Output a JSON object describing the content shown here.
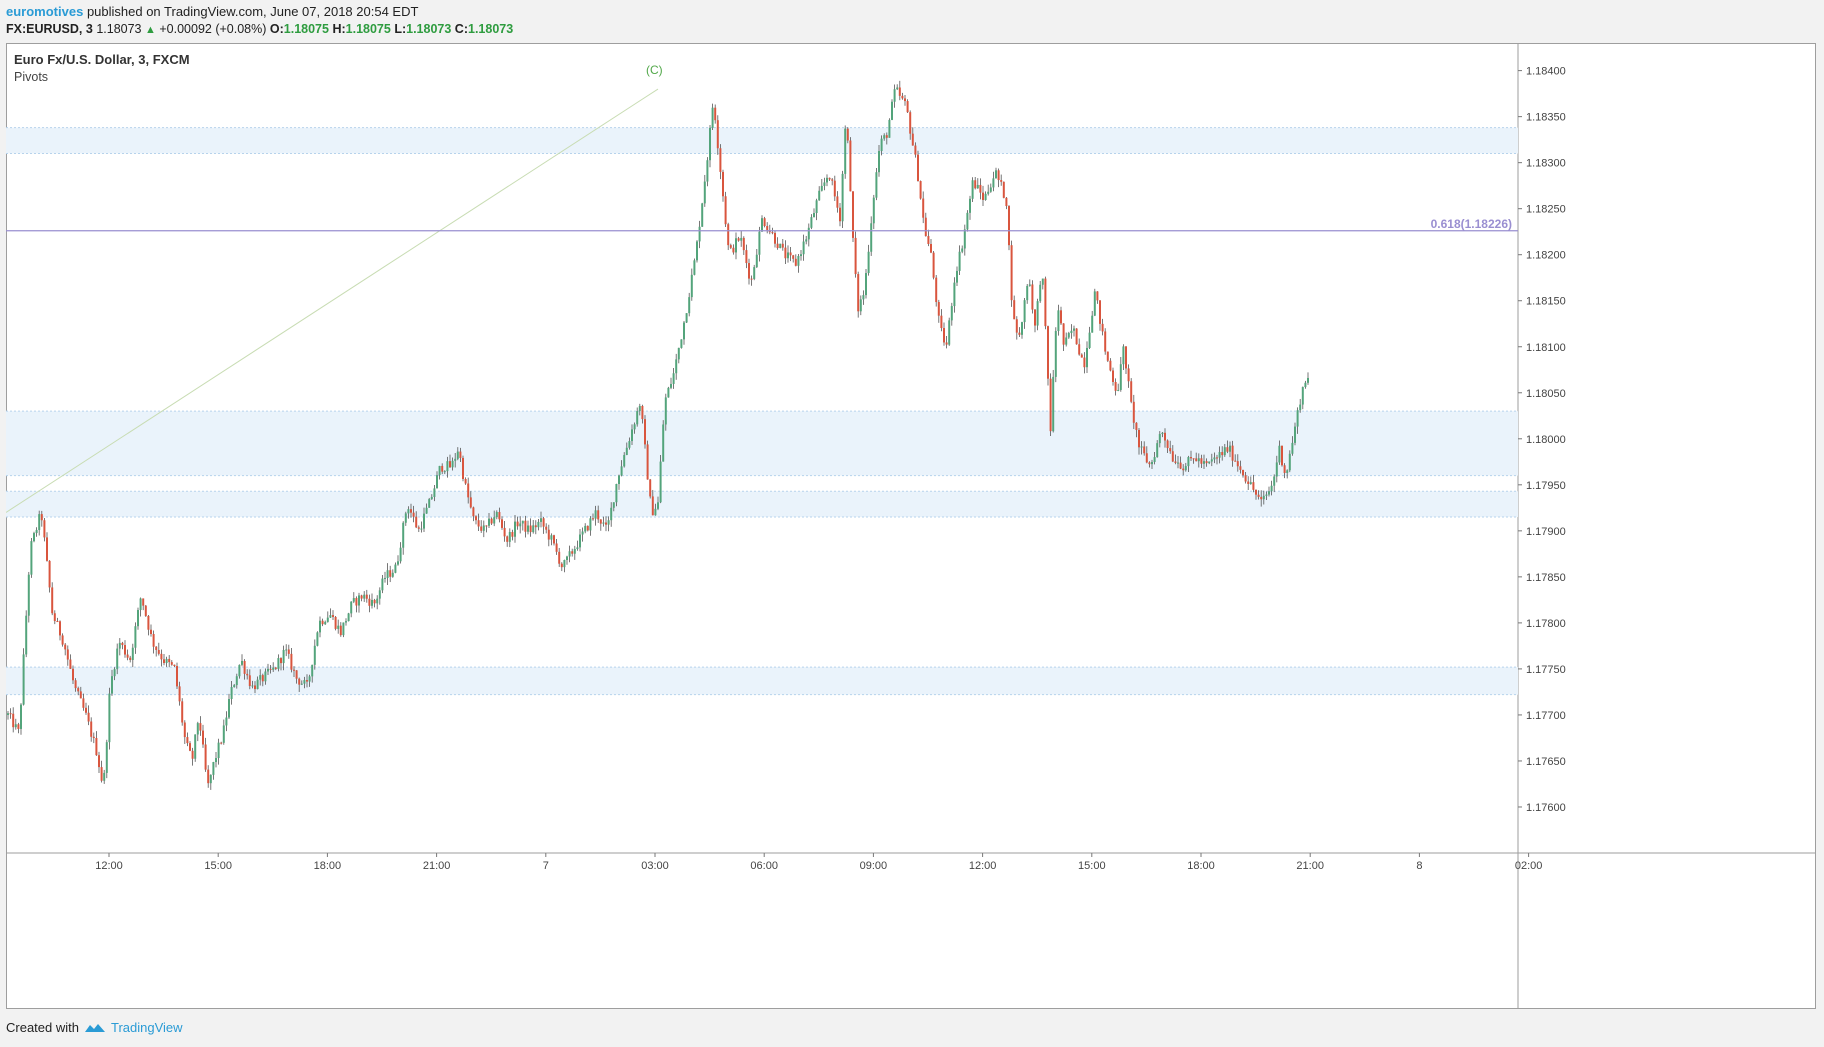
{
  "header": {
    "publisher": "euromotives",
    "published_text": "published on TradingView.com, June 07, 2018 20:54 EDT",
    "symbol": "FX:EURUSD, 3",
    "last_price": "1.18073",
    "change": "+0.00092 (+0.08%)",
    "open_label": "O:",
    "open_value": "1.18075",
    "high_label": "H:",
    "high_value": "1.18075",
    "low_label": "L:",
    "low_value": "1.18073",
    "close_label": "C:",
    "close_value": "1.18073"
  },
  "legend": {
    "title": "Euro Fx/U.S. Dollar, 3, FXCM",
    "indicator": "Pivots"
  },
  "footer": {
    "created_with": "Created with",
    "brand": "TradingView"
  },
  "colors": {
    "up_candle": "#53a47b",
    "down_candle": "#d9553e",
    "wick": "#555555",
    "fib_line": "#9a8fd1",
    "wave_line": "#c8dcb3",
    "wave_label": "#52a84a",
    "zone_fill": "#eaf3fb",
    "zone_line": "#b7d3ec"
  },
  "chart_data": {
    "type": "candlestick",
    "title": "Euro Fx/U.S. Dollar, 3, FXCM",
    "x_axis": [
      "12:00",
      "15:00",
      "18:00",
      "21:00",
      "7",
      "03:00",
      "06:00",
      "09:00",
      "12:00",
      "15:00",
      "18:00",
      "21:00",
      "8",
      "02:00"
    ],
    "y_ticks": [
      "1.18400",
      "1.18350",
      "1.18300",
      "1.18250",
      "1.18200",
      "1.18150",
      "1.18100",
      "1.18050",
      "1.18000",
      "1.17950",
      "1.17900",
      "1.17850",
      "1.17800",
      "1.17750",
      "1.17700",
      "1.17650",
      "1.17600"
    ],
    "ylim": [
      1.1755,
      1.1843
    ],
    "series_close_path": [
      [
        0,
        1.177
      ],
      [
        0.5,
        1.1768
      ],
      [
        1.0,
        1.1788
      ],
      [
        1.5,
        1.1792
      ],
      [
        2.0,
        1.1781
      ],
      [
        2.5,
        1.1778
      ],
      [
        3.0,
        1.1773
      ],
      [
        3.5,
        1.177
      ],
      [
        4.0,
        1.1766
      ],
      [
        4.3,
        1.1762
      ],
      [
        4.6,
        1.1773
      ],
      [
        5.0,
        1.1778
      ],
      [
        5.5,
        1.1776
      ],
      [
        6.0,
        1.1783
      ],
      [
        6.5,
        1.1778
      ],
      [
        7.0,
        1.1776
      ],
      [
        7.5,
        1.1775
      ],
      [
        8.0,
        1.1767
      ],
      [
        8.3,
        1.1765
      ],
      [
        8.6,
        1.177
      ],
      [
        9.0,
        1.1762
      ],
      [
        9.3,
        1.1765
      ],
      [
        9.7,
        1.1768
      ],
      [
        10.0,
        1.1772
      ],
      [
        10.5,
        1.1776
      ],
      [
        11.0,
        1.1773
      ],
      [
        11.5,
        1.1774
      ],
      [
        12.0,
        1.1775
      ],
      [
        12.5,
        1.1777
      ],
      [
        13.0,
        1.1774
      ],
      [
        13.5,
        1.1773
      ],
      [
        14.0,
        1.178
      ],
      [
        14.5,
        1.1781
      ],
      [
        15.0,
        1.1779
      ],
      [
        15.5,
        1.1782
      ],
      [
        16.0,
        1.1783
      ],
      [
        16.5,
        1.1782
      ],
      [
        17.0,
        1.1785
      ],
      [
        17.5,
        1.1786
      ],
      [
        18.0,
        1.1793
      ],
      [
        18.5,
        1.179
      ],
      [
        19.0,
        1.1793
      ],
      [
        19.5,
        1.1797
      ],
      [
        20.0,
        1.1797
      ],
      [
        20.3,
        1.1799
      ],
      [
        20.6,
        1.1795
      ],
      [
        21.0,
        1.1791
      ],
      [
        21.5,
        1.179
      ],
      [
        22.0,
        1.1792
      ],
      [
        22.5,
        1.1789
      ],
      [
        23.0,
        1.1791
      ],
      [
        23.5,
        1.179
      ],
      [
        24.0,
        1.1791
      ],
      [
        24.5,
        1.1789
      ],
      [
        25.0,
        1.1786
      ],
      [
        25.5,
        1.1788
      ],
      [
        26.0,
        1.179
      ],
      [
        26.5,
        1.1792
      ],
      [
        27.0,
        1.179
      ],
      [
        27.5,
        1.1796
      ],
      [
        28.0,
        1.18
      ],
      [
        28.5,
        1.1804
      ],
      [
        29.0,
        1.1792
      ],
      [
        29.3,
        1.1793
      ],
      [
        29.6,
        1.1804
      ],
      [
        30.0,
        1.1807
      ],
      [
        30.5,
        1.1813
      ],
      [
        31.0,
        1.182
      ],
      [
        31.5,
        1.183
      ],
      [
        31.8,
        1.1837
      ],
      [
        32.0,
        1.1832
      ],
      [
        32.5,
        1.182
      ],
      [
        33.0,
        1.1822
      ],
      [
        33.5,
        1.1817
      ],
      [
        34.0,
        1.1824
      ],
      [
        34.5,
        1.1822
      ],
      [
        35.0,
        1.182
      ],
      [
        35.5,
        1.1819
      ],
      [
        36.0,
        1.1822
      ],
      [
        36.5,
        1.1826
      ],
      [
        37.0,
        1.1829
      ],
      [
        37.5,
        1.1824
      ],
      [
        37.8,
        1.1836
      ],
      [
        38.0,
        1.1825
      ],
      [
        38.3,
        1.1814
      ],
      [
        38.6,
        1.1816
      ],
      [
        39.0,
        1.1826
      ],
      [
        39.3,
        1.1832
      ],
      [
        39.6,
        1.1833
      ],
      [
        40.0,
        1.1838
      ],
      [
        40.5,
        1.1836
      ],
      [
        41.0,
        1.1829
      ],
      [
        41.3,
        1.1823
      ],
      [
        41.6,
        1.182
      ],
      [
        42.0,
        1.1812
      ],
      [
        42.3,
        1.181
      ],
      [
        42.7,
        1.1818
      ],
      [
        43.0,
        1.1821
      ],
      [
        43.5,
        1.1828
      ],
      [
        44.0,
        1.1826
      ],
      [
        44.5,
        1.1829
      ],
      [
        45.0,
        1.1826
      ],
      [
        45.3,
        1.1813
      ],
      [
        45.6,
        1.1811
      ],
      [
        46.0,
        1.1818
      ],
      [
        46.3,
        1.1812
      ],
      [
        46.6,
        1.1819
      ],
      [
        47.0,
        1.1801
      ],
      [
        47.3,
        1.1815
      ],
      [
        47.6,
        1.181
      ],
      [
        48.0,
        1.1812
      ],
      [
        48.5,
        1.1808
      ],
      [
        49.0,
        1.1816
      ],
      [
        49.5,
        1.1809
      ],
      [
        50.0,
        1.1805
      ],
      [
        50.3,
        1.181
      ],
      [
        50.6,
        1.1804
      ],
      [
        51.0,
        1.1799
      ],
      [
        51.5,
        1.1797
      ],
      [
        52.0,
        1.1801
      ],
      [
        52.5,
        1.1798
      ],
      [
        53.0,
        1.1797
      ],
      [
        53.5,
        1.1798
      ],
      [
        54.0,
        1.1797
      ],
      [
        54.5,
        1.1798
      ],
      [
        55.0,
        1.1799
      ],
      [
        55.5,
        1.1797
      ],
      [
        56.0,
        1.1795
      ],
      [
        56.5,
        1.1793
      ],
      [
        57.0,
        1.1795
      ],
      [
        57.3,
        1.1799
      ],
      [
        57.6,
        1.1796
      ],
      [
        58.0,
        1.1801
      ],
      [
        58.3,
        1.1805
      ],
      [
        58.6,
        1.1807
      ]
    ],
    "annotations": [
      {
        "type": "fib_level",
        "label": "0.618(1.18226)",
        "price": 1.18226
      },
      {
        "type": "wave_label",
        "label": "(C)"
      }
    ],
    "pivot_zones": [
      [
        1.1831,
        1.18338
      ],
      [
        1.1796,
        1.1803
      ],
      [
        1.17915,
        1.17943
      ],
      [
        1.17722,
        1.17752
      ]
    ],
    "grid": false
  }
}
